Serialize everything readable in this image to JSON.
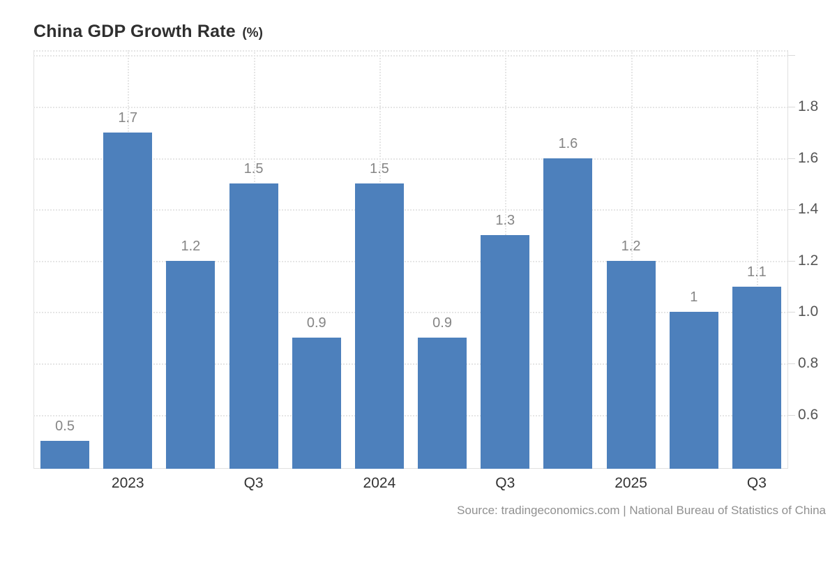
{
  "chart": {
    "title": "China GDP Growth Rate",
    "unit": "(%)",
    "source": "Source: tradingeconomics.com | National Bureau of Statistics of China"
  },
  "chart_data": {
    "type": "bar",
    "title": "China GDP Growth Rate (%)",
    "xlabel": "",
    "ylabel": "",
    "categories": [
      "",
      "2023",
      "",
      "Q3",
      "",
      "2024",
      "",
      "Q3",
      "",
      "2025",
      "",
      "Q3"
    ],
    "values": [
      0.5,
      1.7,
      1.2,
      1.5,
      0.9,
      1.5,
      0.9,
      1.3,
      1.6,
      1.2,
      1,
      1.1
    ],
    "value_labels": [
      "0.5",
      "1.7",
      "1.2",
      "1.5",
      "0.9",
      "1.5",
      "0.9",
      "1.3",
      "1.6",
      "1.2",
      "1",
      "1.1"
    ],
    "ylim": [
      0.39,
      2.02
    ],
    "grid": "dotted",
    "legend": "none",
    "y_axis": {
      "side": "right",
      "gridlines": [
        0.6,
        0.8,
        1.0,
        1.2,
        1.4,
        1.6,
        1.8,
        2.0
      ],
      "ticks": [
        {
          "value": 1.8,
          "label": "1.8"
        },
        {
          "value": 1.6,
          "label": "1.6"
        },
        {
          "value": 1.4,
          "label": "1.4"
        },
        {
          "value": 1.2,
          "label": "1.2"
        },
        {
          "value": 1.0,
          "label": "1.0"
        },
        {
          "value": 0.8,
          "label": "0.8"
        },
        {
          "value": 0.6,
          "label": "0.6"
        }
      ]
    },
    "x_axis": {
      "ticks": [
        {
          "bar_index": 1,
          "label": "2023"
        },
        {
          "bar_index": 3,
          "label": "Q3"
        },
        {
          "bar_index": 5,
          "label": "2024"
        },
        {
          "bar_index": 7,
          "label": "Q3"
        },
        {
          "bar_index": 9,
          "label": "2025"
        },
        {
          "bar_index": 11,
          "label": "Q3"
        }
      ]
    },
    "colors": {
      "bar": "#4d80bc",
      "grid": "#e5e5e5",
      "axis_line": "#e0e0e0",
      "tick_mark": "#d9d9d9",
      "value_label": "#858585",
      "x_label": "#333333",
      "y_label": "#555555",
      "title": "#2f2f2f",
      "source": "#909090"
    }
  }
}
